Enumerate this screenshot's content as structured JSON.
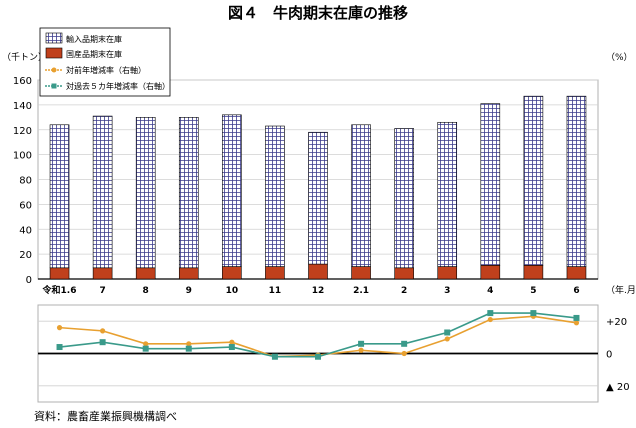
{
  "chart_data": [
    {
      "type": "bar",
      "title": "図４　牛肉期末在庫の推移",
      "y_unit": "（千トン）",
      "right_unit": "（%）",
      "x_unit": "（年.月）",
      "categories": [
        "令和1.6",
        "7",
        "8",
        "9",
        "10",
        "11",
        "12",
        "2.1",
        "2",
        "3",
        "4",
        "5",
        "6"
      ],
      "ylim": [
        0,
        160
      ],
      "yticks": [
        0,
        20,
        40,
        60,
        80,
        100,
        120,
        140,
        160
      ],
      "grid": true,
      "legend_position": "top-left",
      "stacked": true,
      "series": [
        {
          "name": "国産品期末在庫",
          "values": [
            9,
            9,
            9,
            9,
            10,
            10,
            12,
            10,
            9,
            10,
            11,
            11,
            10
          ],
          "color": "#c0401c"
        },
        {
          "name": "輸入品期末在庫",
          "values": [
            115,
            122,
            121,
            121,
            122,
            113,
            106,
            114,
            112,
            116,
            130,
            136,
            137
          ],
          "color": "#3a3a8c"
        }
      ]
    },
    {
      "type": "line",
      "categories": [
        "令和1.6",
        "7",
        "8",
        "9",
        "10",
        "11",
        "12",
        "2.1",
        "2",
        "3",
        "4",
        "5",
        "6"
      ],
      "ylim": [
        -30,
        30
      ],
      "right_tick_labels": [
        {
          "value": 20,
          "label": "+20"
        },
        {
          "value": 0,
          "label": "0"
        },
        {
          "value": -20,
          "label": "▲ 20"
        }
      ],
      "series": [
        {
          "name": "対前年増減率（右軸）",
          "values": [
            16,
            14,
            6,
            6,
            7,
            -2,
            -1,
            2,
            0,
            9,
            21,
            23,
            19
          ],
          "color": "#e8a030"
        },
        {
          "name": "対過去５カ年増減率（右軸）",
          "values": [
            4,
            7,
            3,
            3,
            4,
            -2,
            -2,
            6,
            6,
            13,
            25,
            25,
            22
          ],
          "color": "#3a9a8a"
        }
      ]
    }
  ],
  "source": "資料：農畜産業振興機構調べ"
}
